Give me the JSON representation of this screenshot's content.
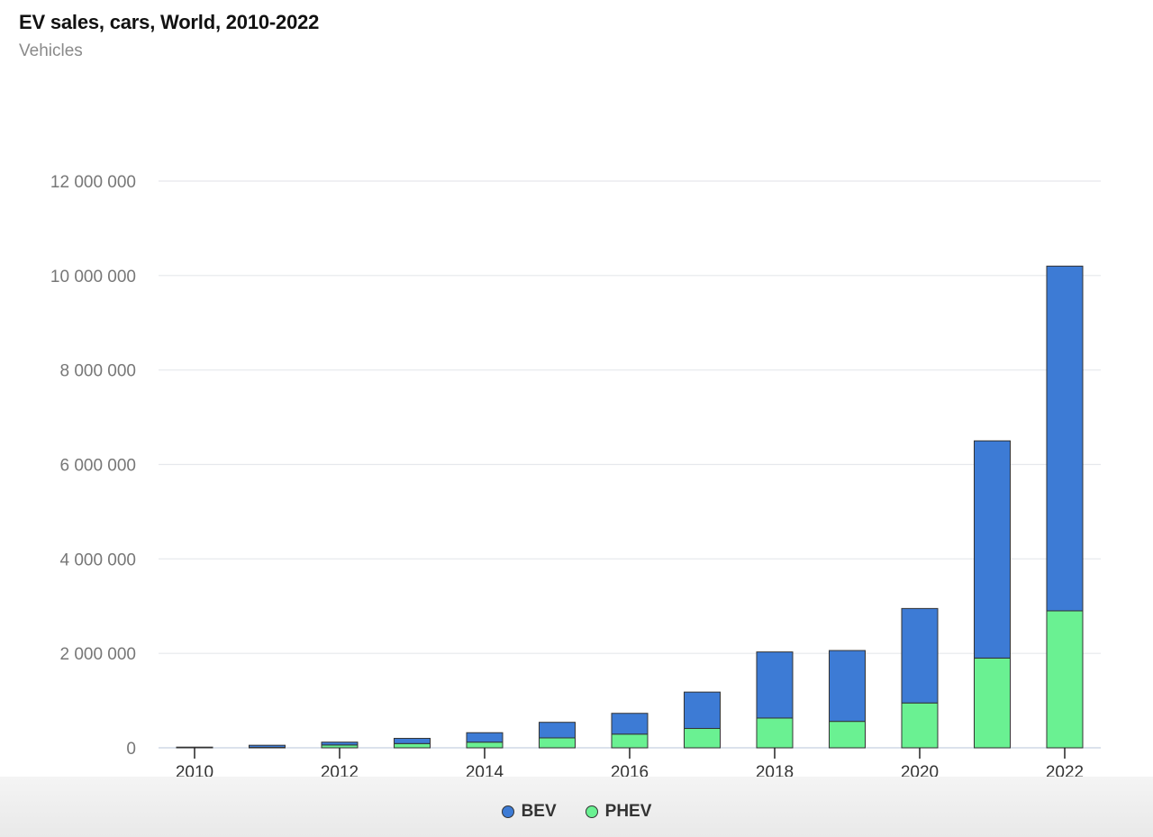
{
  "chart_data": {
    "type": "bar",
    "stacked": true,
    "title": "EV sales, cars, World, 2010-2022",
    "subtitle": "Vehicles",
    "xlabel": "",
    "ylabel": "",
    "categories": [
      "2010",
      "2011",
      "2012",
      "2013",
      "2014",
      "2015",
      "2016",
      "2017",
      "2018",
      "2019",
      "2020",
      "2021",
      "2022"
    ],
    "x_tick_labels": [
      "2010",
      "2012",
      "2014",
      "2016",
      "2018",
      "2020",
      "2022"
    ],
    "y_ticks": [
      0,
      2000000,
      4000000,
      6000000,
      8000000,
      10000000,
      12000000
    ],
    "y_tick_labels": [
      "0",
      "2 000 000",
      "4 000 000",
      "6 000 000",
      "8 000 000",
      "10 000 000",
      "12 000 000"
    ],
    "ylim": [
      0,
      12000000
    ],
    "grid": true,
    "legend_position": "bottom-center",
    "series": [
      {
        "name": "PHEV",
        "color": "#6af192",
        "values": [
          0,
          9000,
          60000,
          90000,
          120000,
          210000,
          290000,
          410000,
          630000,
          560000,
          950000,
          1900000,
          2900000
        ]
      },
      {
        "name": "BEV",
        "color": "#3d7bd5",
        "values": [
          15000,
          45000,
          60000,
          110000,
          200000,
          330000,
          440000,
          770000,
          1400000,
          1500000,
          2000000,
          4600000,
          7300000
        ]
      }
    ],
    "legend": [
      {
        "name": "BEV",
        "color": "#3d7bd5"
      },
      {
        "name": "PHEV",
        "color": "#6af192"
      }
    ]
  }
}
